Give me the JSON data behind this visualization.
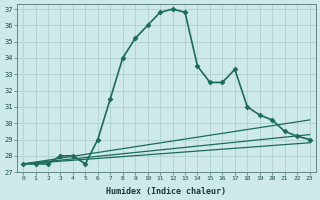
{
  "xlabel": "Humidex (Indice chaleur)",
  "bg_color": "#cee9e9",
  "grid_color": "#afd0d0",
  "line_color": "#1a6b5a",
  "xlim": [
    -0.5,
    23.5
  ],
  "ylim": [
    27,
    37.3
  ],
  "yticks": [
    27,
    28,
    29,
    30,
    31,
    32,
    33,
    34,
    35,
    36,
    37
  ],
  "xticks": [
    0,
    1,
    2,
    3,
    4,
    5,
    6,
    7,
    8,
    9,
    10,
    11,
    12,
    13,
    14,
    15,
    16,
    17,
    18,
    19,
    20,
    21,
    22,
    23
  ],
  "lines": [
    {
      "x": [
        0,
        1,
        2,
        3,
        4,
        5,
        6,
        7,
        8,
        9,
        10,
        11,
        12,
        13,
        14,
        15,
        16,
        17,
        18,
        19,
        20,
        21,
        22,
        23
      ],
      "y": [
        27.5,
        27.5,
        27.5,
        28.0,
        28.0,
        27.5,
        29.0,
        31.5,
        34.0,
        35.2,
        36.0,
        36.8,
        37.0,
        36.8,
        33.5,
        32.5,
        32.5,
        33.3,
        31.0,
        30.5,
        30.2,
        29.5,
        29.2,
        29.0
      ],
      "marker": "D",
      "markersize": 2.5,
      "linewidth": 1.2
    },
    {
      "x": [
        0,
        23
      ],
      "y": [
        27.5,
        28.8
      ],
      "marker": null,
      "markersize": 0,
      "linewidth": 0.9
    },
    {
      "x": [
        0,
        23
      ],
      "y": [
        27.5,
        29.3
      ],
      "marker": null,
      "markersize": 0,
      "linewidth": 0.9
    },
    {
      "x": [
        0,
        23
      ],
      "y": [
        27.5,
        30.2
      ],
      "marker": null,
      "markersize": 0,
      "linewidth": 0.9
    }
  ]
}
